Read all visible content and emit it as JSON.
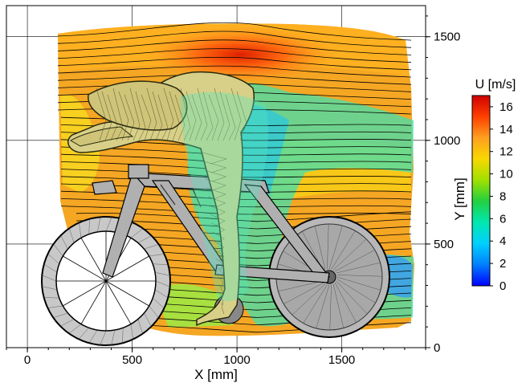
{
  "chart_data": {
    "type": "heatmap",
    "title": "",
    "xlabel": "X [mm]",
    "ylabel": "Y [mm]",
    "xlim": [
      -100,
      1900
    ],
    "ylim": [
      0,
      1650
    ],
    "xticks": [
      0,
      500,
      1000,
      1500
    ],
    "yticks": [
      0,
      500,
      1000,
      1500
    ],
    "grid": true,
    "colorbar": {
      "title": "U [m/s]",
      "min": 0,
      "max": 17,
      "ticks": [
        0,
        2,
        4,
        6,
        8,
        10,
        12,
        14,
        16
      ],
      "colors": [
        "#0000ff",
        "#0080ff",
        "#00d0ff",
        "#00e8b0",
        "#22d040",
        "#a0e000",
        "#f8d800",
        "#ffa020",
        "#ff4000",
        "#d00000"
      ]
    },
    "field": {
      "freestream_speed": 12,
      "peak_speed_over_back": 16,
      "wake_speed_min": 5
    }
  }
}
